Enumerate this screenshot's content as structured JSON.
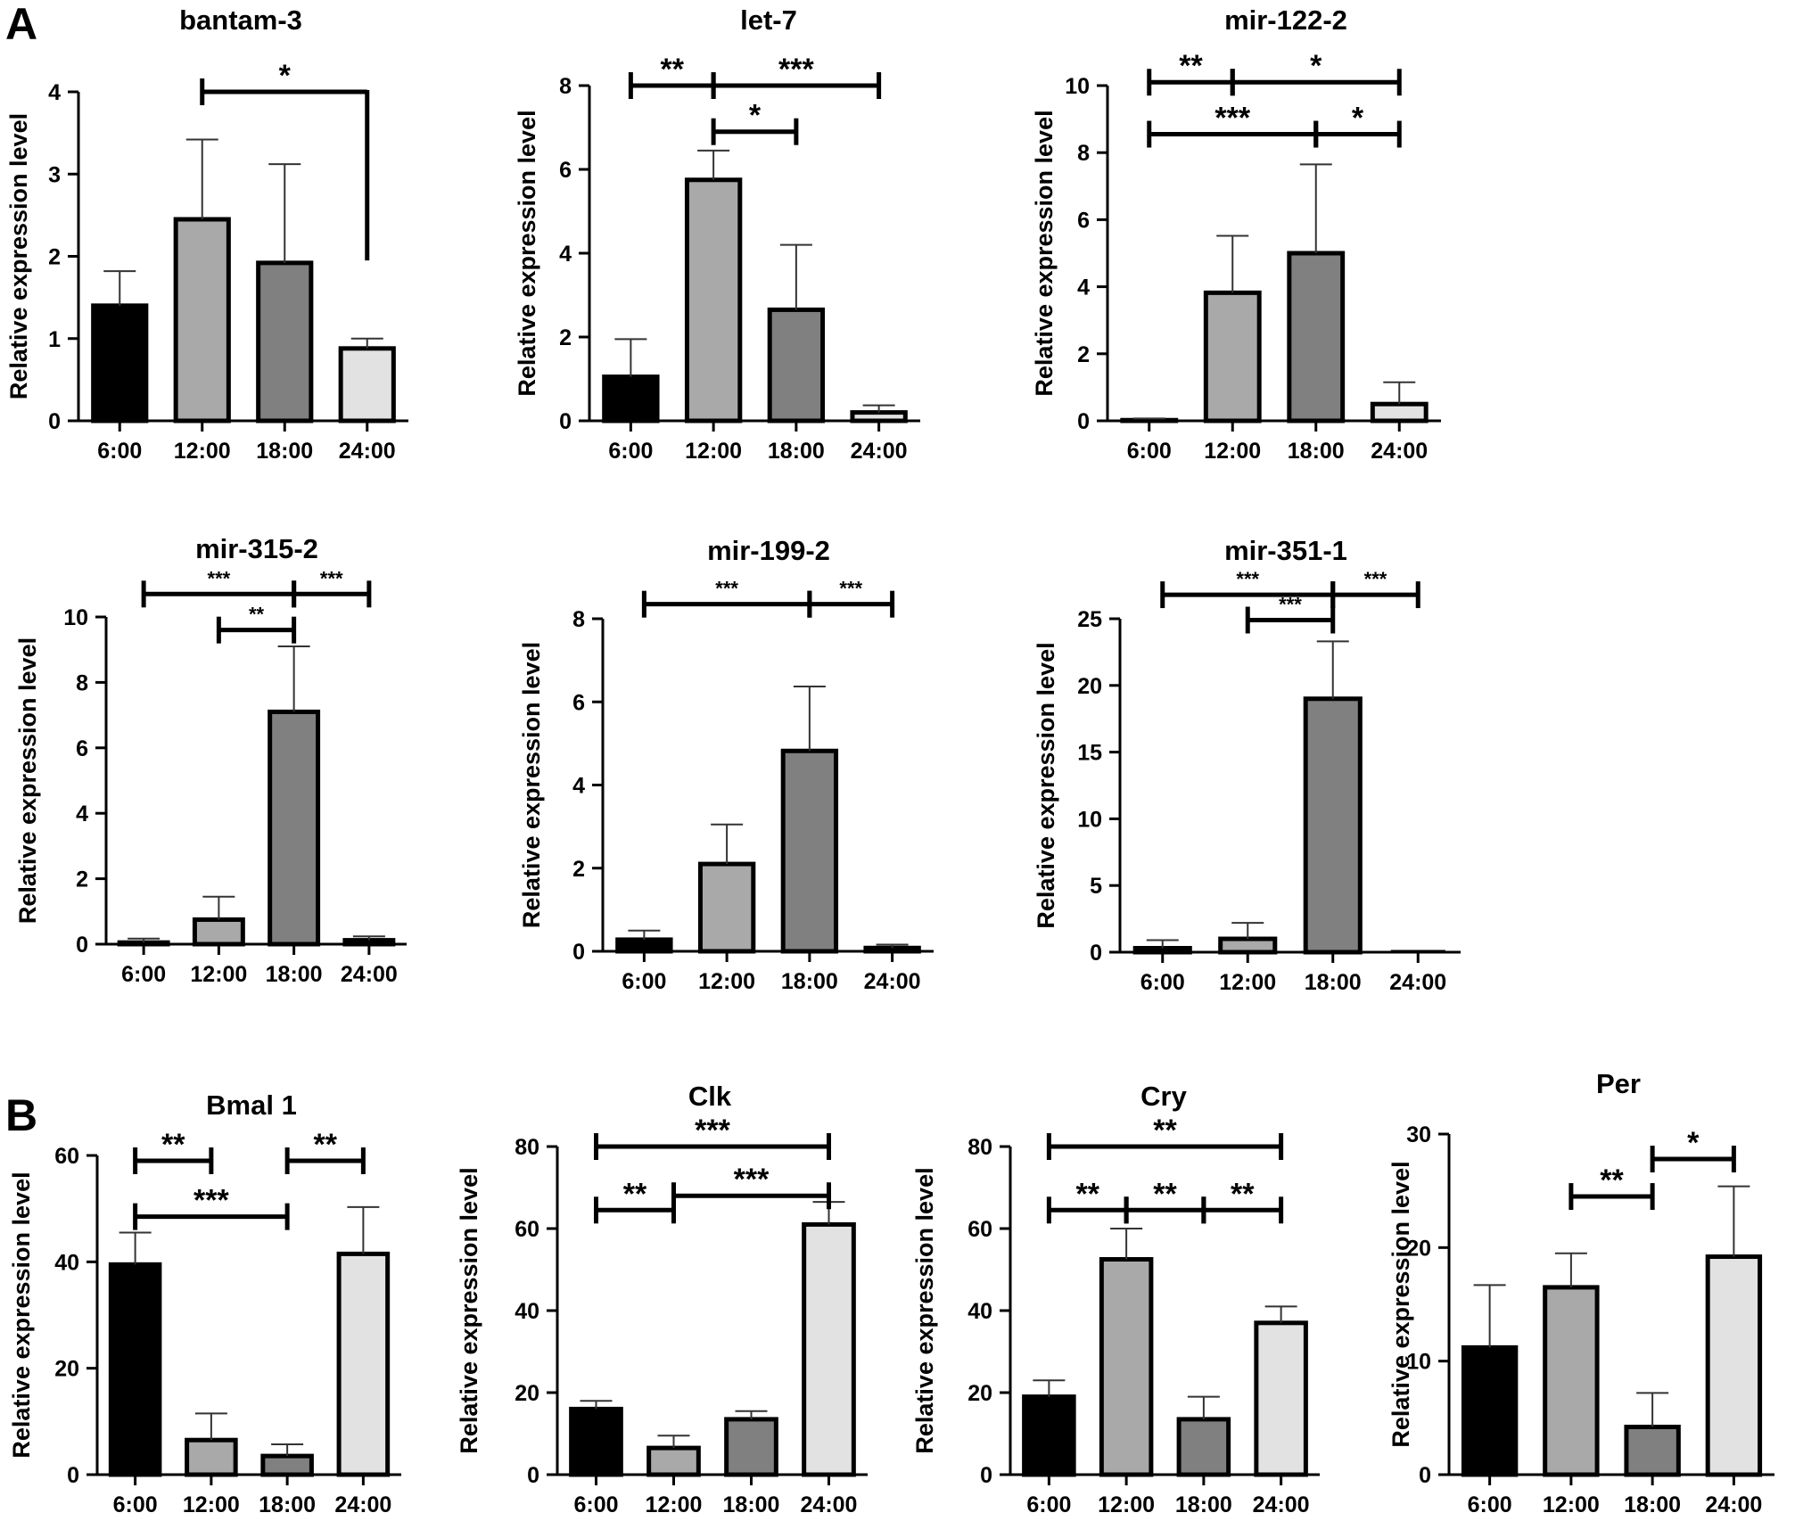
{
  "panels": [
    {
      "id": "A"
    },
    {
      "id": "B"
    }
  ],
  "bar_colors": [
    "#000000",
    "#a9a9a9",
    "#808080",
    "#e2e2e2"
  ],
  "chart_data": [
    {
      "type": "bar",
      "panel": "A",
      "title": "bantam-3",
      "categories": [
        "6:00",
        "12:00",
        "18:00",
        "24:00"
      ],
      "values": [
        1.4,
        2.45,
        1.92,
        0.88
      ],
      "errors": [
        0.42,
        0.97,
        1.2,
        0.12
      ],
      "ylim": [
        0,
        4
      ],
      "yticks": [
        0,
        1,
        2,
        3,
        4
      ],
      "xlabel": "",
      "ylabel": "Relative expression level",
      "significance": [
        {
          "from": 1,
          "to": 3,
          "label": "*",
          "y": 4.0,
          "drop_to": 1.95
        }
      ]
    },
    {
      "type": "bar",
      "panel": "A",
      "title": "let-7",
      "categories": [
        "6:00",
        "12:00",
        "18:00",
        "24:00"
      ],
      "values": [
        1.05,
        5.75,
        2.65,
        0.2
      ],
      "errors": [
        0.9,
        0.7,
        1.55,
        0.17
      ],
      "ylim": [
        0,
        8
      ],
      "yticks": [
        0,
        2,
        4,
        6,
        8
      ],
      "xlabel": "",
      "ylabel": "Relative expression level",
      "significance": [
        {
          "from": 0,
          "to": 1,
          "label": "**",
          "y": 8.0
        },
        {
          "from": 1,
          "to": 3,
          "label": "***",
          "y": 8.0
        },
        {
          "from": 1,
          "to": 2,
          "label": "*",
          "y": 6.9
        }
      ]
    },
    {
      "type": "bar",
      "panel": "A",
      "title": "mir-122-2",
      "categories": [
        "6:00",
        "12:00",
        "18:00",
        "24:00"
      ],
      "values": [
        0.02,
        3.82,
        5.0,
        0.5
      ],
      "errors": [
        0.05,
        1.7,
        2.65,
        0.65
      ],
      "ylim": [
        0,
        10
      ],
      "yticks": [
        0,
        2,
        4,
        6,
        8,
        10
      ],
      "xlabel": "",
      "ylabel": "Relative expression level",
      "significance": [
        {
          "from": 0,
          "to": 1,
          "label": "**",
          "y": 10.1
        },
        {
          "from": 1,
          "to": 3,
          "label": "*",
          "y": 10.1
        },
        {
          "from": 0,
          "to": 2,
          "label": "***",
          "y": 8.55
        },
        {
          "from": 2,
          "to": 3,
          "label": "*",
          "y": 8.55
        }
      ]
    },
    {
      "type": "bar",
      "panel": "A",
      "title": "mir-315-2",
      "categories": [
        "6:00",
        "12:00",
        "18:00",
        "24:00"
      ],
      "values": [
        0.05,
        0.75,
        7.1,
        0.12
      ],
      "errors": [
        0.12,
        0.7,
        2.0,
        0.12
      ],
      "ylim": [
        0,
        10
      ],
      "yticks": [
        0,
        2,
        4,
        6,
        8,
        10
      ],
      "xlabel": "",
      "ylabel": "Relative expression level",
      "significance": [
        {
          "from": 0,
          "to": 2,
          "label": "***",
          "y": 10.7
        },
        {
          "from": 2,
          "to": 3,
          "label": "***",
          "y": 10.7
        },
        {
          "from": 1,
          "to": 2,
          "label": "**",
          "y": 9.6
        }
      ]
    },
    {
      "type": "bar",
      "panel": "A",
      "title": "mir-199-2",
      "categories": [
        "6:00",
        "12:00",
        "18:00",
        "24:00"
      ],
      "values": [
        0.28,
        2.1,
        4.82,
        0.08
      ],
      "errors": [
        0.22,
        0.95,
        1.55,
        0.08
      ],
      "ylim": [
        0,
        8
      ],
      "yticks": [
        0,
        2,
        4,
        6,
        8
      ],
      "xlabel": "",
      "ylabel": "Relative expression level",
      "significance": [
        {
          "from": 0,
          "to": 2,
          "label": "***",
          "y": 8.35
        },
        {
          "from": 2,
          "to": 3,
          "label": "***",
          "y": 8.35
        }
      ]
    },
    {
      "type": "bar",
      "panel": "A",
      "title": "mir-351-1",
      "categories": [
        "6:00",
        "12:00",
        "18:00",
        "24:00"
      ],
      "values": [
        0.3,
        1.0,
        19.0,
        0.0
      ],
      "errors": [
        0.6,
        1.2,
        4.3,
        0.0
      ],
      "ylim": [
        0,
        25
      ],
      "yticks": [
        0,
        5,
        10,
        15,
        20,
        25
      ],
      "xlabel": "",
      "ylabel": "Relative expression level",
      "significance": [
        {
          "from": 0,
          "to": 2,
          "label": "***",
          "y": 26.8
        },
        {
          "from": 2,
          "to": 3,
          "label": "***",
          "y": 26.8
        },
        {
          "from": 1,
          "to": 2,
          "label": "***",
          "y": 24.9
        }
      ]
    },
    {
      "type": "bar",
      "panel": "B",
      "title": "Bmal 1",
      "categories": [
        "6:00",
        "12:00",
        "18:00",
        "24:00"
      ],
      "values": [
        39.5,
        6.5,
        3.5,
        41.5
      ],
      "errors": [
        6.0,
        5.0,
        2.2,
        8.8
      ],
      "ylim": [
        0,
        60
      ],
      "yticks": [
        0,
        20,
        40,
        60
      ],
      "xlabel": "",
      "ylabel": "Relative expression level",
      "significance": [
        {
          "from": 0,
          "to": 1,
          "label": "**",
          "y": 59.0
        },
        {
          "from": 2,
          "to": 3,
          "label": "**",
          "y": 59.0
        },
        {
          "from": 0,
          "to": 2,
          "label": "***",
          "y": 48.5
        }
      ]
    },
    {
      "type": "bar",
      "panel": "B",
      "title": "Clk",
      "categories": [
        "6:00",
        "12:00",
        "18:00",
        "24:00"
      ],
      "values": [
        16.0,
        6.5,
        13.5,
        61.0
      ],
      "errors": [
        2.0,
        3.0,
        2.0,
        5.5
      ],
      "ylim": [
        0,
        80
      ],
      "yticks": [
        0,
        20,
        40,
        60,
        80
      ],
      "xlabel": "",
      "ylabel": "Relative expression level",
      "significance": [
        {
          "from": 0,
          "to": 3,
          "label": "***",
          "y": 80.0
        },
        {
          "from": 0,
          "to": 1,
          "label": "**",
          "y": 64.5
        },
        {
          "from": 1,
          "to": 3,
          "label": "***",
          "y": 68.0
        }
      ]
    },
    {
      "type": "bar",
      "panel": "B",
      "title": "Cry",
      "categories": [
        "6:00",
        "12:00",
        "18:00",
        "24:00"
      ],
      "values": [
        19.0,
        52.5,
        13.5,
        37.0
      ],
      "errors": [
        4.0,
        7.5,
        5.5,
        4.0
      ],
      "ylim": [
        0,
        80
      ],
      "yticks": [
        0,
        20,
        40,
        60,
        80
      ],
      "xlabel": "",
      "ylabel": "Relative expression level",
      "significance": [
        {
          "from": 0,
          "to": 3,
          "label": "**",
          "y": 80.0
        },
        {
          "from": 0,
          "to": 1,
          "label": "**",
          "y": 64.5
        },
        {
          "from": 1,
          "to": 2,
          "label": "**",
          "y": 64.5
        },
        {
          "from": 2,
          "to": 3,
          "label": "**",
          "y": 64.5
        }
      ]
    },
    {
      "type": "bar",
      "panel": "B",
      "title": "Per",
      "categories": [
        "6:00",
        "12:00",
        "18:00",
        "24:00"
      ],
      "values": [
        11.2,
        16.5,
        4.2,
        19.2
      ],
      "errors": [
        5.5,
        3.0,
        3.0,
        6.2
      ],
      "ylim": [
        0,
        30
      ],
      "yticks": [
        0,
        10,
        20,
        30
      ],
      "xlabel": "",
      "ylabel": "Relative expression level",
      "significance": [
        {
          "from": 1,
          "to": 2,
          "label": "**",
          "y": 24.5
        },
        {
          "from": 2,
          "to": 3,
          "label": "*",
          "y": 27.8
        }
      ]
    }
  ]
}
